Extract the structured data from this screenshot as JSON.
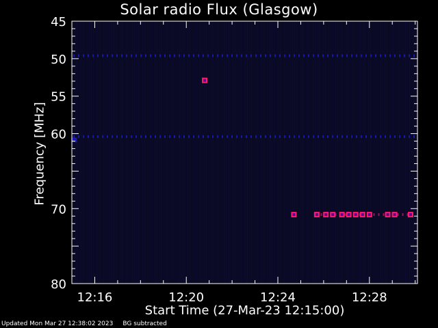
{
  "chart_data": {
    "type": "heatmap",
    "title": "Solar radio Flux (Glasgow)",
    "xlabel": "Start Time (27-Mar-23 12:15:00)",
    "ylabel": "Frequency [MHz]",
    "x_range_minutes": [
      15.0,
      30.1
    ],
    "y_range_mhz": [
      45,
      80
    ],
    "x_ticks": [
      {
        "label": "12:16",
        "minute": 16
      },
      {
        "label": "12:20",
        "minute": 20
      },
      {
        "label": "12:24",
        "minute": 24
      },
      {
        "label": "12:28",
        "minute": 28
      }
    ],
    "y_ticks": [
      {
        "label": "45",
        "mhz": 45
      },
      {
        "label": "50",
        "mhz": 50
      },
      {
        "label": "55",
        "mhz": 55
      },
      {
        "label": "60",
        "mhz": 60
      },
      {
        "label": "70",
        "mhz": 70
      },
      {
        "label": "80",
        "mhz": 80
      }
    ],
    "background_color": "#000000",
    "plot_color": "#0a0a24",
    "signal_colors": {
      "weak": "#1a1ab4",
      "strong": "#ff1a6e",
      "core": "#ff80c0"
    },
    "emission_bands": [
      {
        "mhz": 49.6,
        "minute_start": 15.0,
        "minute_end": 30.1,
        "intensity": "weak"
      },
      {
        "mhz": 60.4,
        "minute_start": 15.0,
        "minute_end": 30.1,
        "intensity": "weak"
      },
      {
        "mhz": 70.8,
        "minute_start": 25.6,
        "minute_end": 30.1,
        "intensity": "strong"
      }
    ],
    "hotspots": [
      {
        "mhz": 52.9,
        "minute": 20.8,
        "intensity": "strong"
      },
      {
        "mhz": 60.8,
        "minute": 15.1,
        "intensity": "weak"
      },
      {
        "mhz": 70.8,
        "minute": 24.7,
        "intensity": "strong"
      },
      {
        "mhz": 70.8,
        "minute": 25.7,
        "intensity": "strong"
      },
      {
        "mhz": 70.8,
        "minute": 26.1,
        "intensity": "strong"
      },
      {
        "mhz": 70.8,
        "minute": 26.4,
        "intensity": "strong"
      },
      {
        "mhz": 70.8,
        "minute": 26.8,
        "intensity": "strong"
      },
      {
        "mhz": 70.8,
        "minute": 27.1,
        "intensity": "strong"
      },
      {
        "mhz": 70.8,
        "minute": 27.4,
        "intensity": "strong"
      },
      {
        "mhz": 70.8,
        "minute": 27.7,
        "intensity": "strong"
      },
      {
        "mhz": 70.8,
        "minute": 28.0,
        "intensity": "strong"
      },
      {
        "mhz": 70.8,
        "minute": 28.8,
        "intensity": "strong"
      },
      {
        "mhz": 70.8,
        "minute": 29.1,
        "intensity": "strong"
      },
      {
        "mhz": 70.8,
        "minute": 29.8,
        "intensity": "strong"
      }
    ]
  },
  "footer": {
    "updated": "Updated Mon Mar 27 12:38:02 2023",
    "note": "BG subtracted"
  }
}
